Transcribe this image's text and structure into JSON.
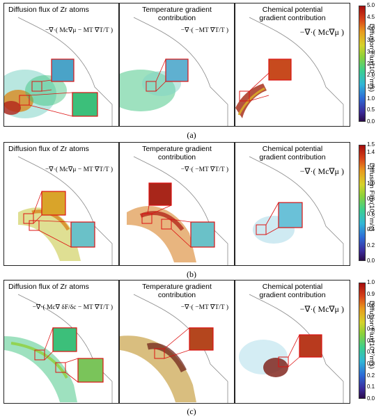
{
  "panels": {
    "flux": "Diffusion flux of Zr atoms",
    "temp_l1": "Temperature gradient",
    "temp_l2": "contribution",
    "chem_l1": "Chemical potential",
    "chem_l2": "gradient contribution"
  },
  "equations": {
    "flux_ab": "−∇·( Mc∇μ − MT ∇T/T )",
    "flux_c": "−∇·( Mc∇ δF/δc − MT ∇T/T )",
    "temp": "−∇·( −MT ∇T/T )",
    "chem": "−∇·( Mc∇μ )"
  },
  "colorbar_label": "Diffusion Flux(10⁻⁷m/s)",
  "rows": [
    {
      "caption": "(a)",
      "ticks": [
        "5.0",
        "4.5",
        "4.0",
        "3.5",
        "3.0",
        "2.5",
        "2.0",
        "1.5",
        "1.0",
        "0.5",
        "0.0"
      ]
    },
    {
      "caption": "(b)",
      "ticks": [
        "1.5",
        "1.4",
        "1.2",
        "1.0",
        "0.8",
        "0.6",
        "0.4",
        "0.2",
        "0.0"
      ]
    },
    {
      "caption": "(c)",
      "ticks": [
        "1.0",
        "0.9",
        "0.8",
        "0.7",
        "0.6",
        "0.5",
        "0.4",
        "0.3",
        "0.2",
        "0.1",
        "0.0"
      ]
    }
  ]
}
